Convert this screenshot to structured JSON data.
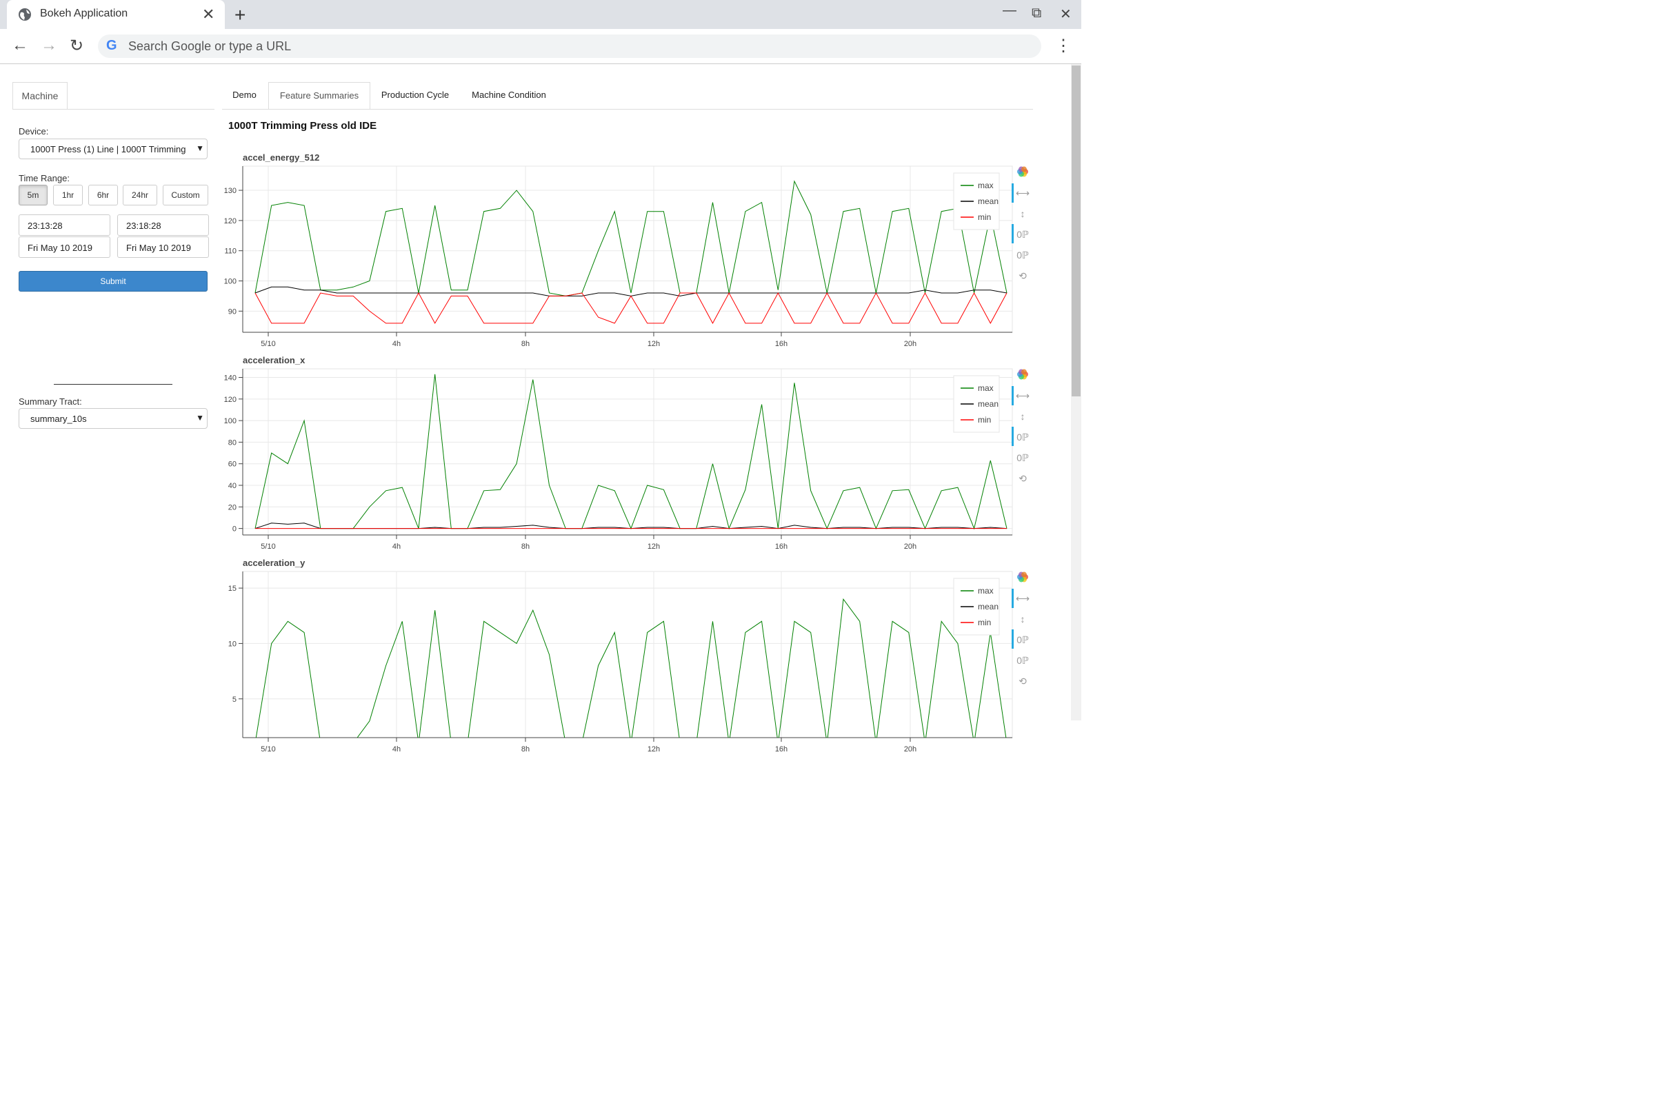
{
  "browser": {
    "tab_title": "Bokeh Application",
    "close_glyph": "✕",
    "new_tab_glyph": "+",
    "omnibox_placeholder": "Search Google or type a URL",
    "window_controls": [
      "minimize-icon",
      "restore-icon",
      "close-icon"
    ]
  },
  "left_panel": {
    "tab": "Machine",
    "device_label": "Device:",
    "device_value": "1000T Press (1) Line | 1000T Trimming",
    "time_range_label": "Time Range:",
    "time_buttons": [
      "5m",
      "1hr",
      "6hr",
      "24hr",
      "Custom"
    ],
    "active_time_button": "5m",
    "start_time": "23:13:28",
    "end_time": "23:18:28",
    "start_date": "Fri May 10 2019",
    "end_date": "Fri May 10 2019",
    "submit_label": "Submit",
    "summary_label": "Summary Tract:",
    "summary_value": "summary_10s"
  },
  "main_tabs": [
    "Demo",
    "Feature Summaries",
    "Production Cycle",
    "Machine Condition"
  ],
  "active_main_tab": "Feature Summaries",
  "page_title": "1000T Trimming Press old IDE",
  "legend": [
    "max",
    "mean",
    "min"
  ],
  "colors": {
    "max": "#008000",
    "mean": "#000000",
    "min": "#ff0000",
    "submit": "#3c87cc"
  },
  "x_ticks": [
    "5/10",
    "4h",
    "8h",
    "12h",
    "16h",
    "20h"
  ],
  "toolbar_icons": [
    "bokeh-logo-icon",
    "xpan-icon",
    "ypan-icon",
    "xwheel-zoom-icon",
    "ywheel-zoom-icon",
    "reset-icon"
  ],
  "chart_data": [
    {
      "type": "line",
      "title": "accel_energy_512",
      "x": [
        0,
        0.5,
        1,
        1.5,
        2,
        2.5,
        3,
        3.5,
        4,
        4.5,
        5,
        5.5,
        6,
        6.5,
        7,
        7.5,
        8,
        8.5,
        9,
        9.5,
        10,
        10.5,
        11,
        11.5,
        12,
        12.5,
        13,
        13.5,
        14,
        14.5,
        15,
        15.5,
        16,
        16.5,
        17,
        17.5,
        18,
        18.5,
        19,
        19.5,
        20,
        20.5,
        21,
        21.5,
        22,
        22.5,
        23
      ],
      "ylim": [
        83,
        138
      ],
      "yticks": [
        90,
        100,
        110,
        120,
        130
      ],
      "series": [
        {
          "name": "max",
          "values": [
            96,
            125,
            126,
            125,
            97,
            97,
            98,
            100,
            123,
            124,
            96,
            125,
            97,
            97,
            123,
            124,
            130,
            123,
            96,
            95,
            96,
            110,
            123,
            96,
            123,
            123,
            96,
            96,
            126,
            96,
            123,
            126,
            97,
            133,
            122,
            96,
            123,
            124,
            96,
            123,
            124,
            96,
            123,
            124,
            96,
            122,
            96
          ]
        },
        {
          "name": "mean",
          "values": [
            96,
            98,
            98,
            97,
            97,
            96,
            96,
            96,
            96,
            96,
            96,
            96,
            96,
            96,
            96,
            96,
            96,
            96,
            95,
            95,
            95,
            96,
            96,
            95,
            96,
            96,
            95,
            96,
            96,
            96,
            96,
            96,
            96,
            96,
            96,
            96,
            96,
            96,
            96,
            96,
            96,
            97,
            96,
            96,
            97,
            97,
            96
          ]
        },
        {
          "name": "min",
          "values": [
            96,
            86,
            86,
            86,
            96,
            95,
            95,
            90,
            86,
            86,
            96,
            86,
            95,
            95,
            86,
            86,
            86,
            86,
            95,
            95,
            96,
            88,
            86,
            95,
            86,
            86,
            96,
            96,
            86,
            96,
            86,
            86,
            96,
            86,
            86,
            96,
            86,
            86,
            96,
            86,
            86,
            96,
            86,
            86,
            96,
            86,
            96
          ]
        }
      ]
    },
    {
      "type": "line",
      "title": "acceleration_x",
      "x": [
        0,
        0.5,
        1,
        1.5,
        2,
        2.5,
        3,
        3.5,
        4,
        4.5,
        5,
        5.5,
        6,
        6.5,
        7,
        7.5,
        8,
        8.5,
        9,
        9.5,
        10,
        10.5,
        11,
        11.5,
        12,
        12.5,
        13,
        13.5,
        14,
        14.5,
        15,
        15.5,
        16,
        16.5,
        17,
        17.5,
        18,
        18.5,
        19,
        19.5,
        20,
        20.5,
        21,
        21.5,
        22,
        22.5,
        23
      ],
      "ylim": [
        -6,
        148
      ],
      "yticks": [
        0,
        20,
        40,
        60,
        80,
        100,
        120,
        140
      ],
      "series": [
        {
          "name": "max",
          "values": [
            0,
            70,
            60,
            100,
            0,
            0,
            0,
            20,
            35,
            38,
            0,
            143,
            0,
            0,
            35,
            36,
            60,
            138,
            40,
            0,
            0,
            40,
            35,
            0,
            40,
            36,
            0,
            0,
            60,
            0,
            36,
            115,
            0,
            135,
            35,
            0,
            35,
            38,
            0,
            35,
            36,
            0,
            35,
            38,
            0,
            63,
            0
          ]
        },
        {
          "name": "mean",
          "values": [
            0,
            5,
            4,
            5,
            0,
            0,
            0,
            0,
            0,
            0,
            0,
            1,
            0,
            0,
            1,
            1,
            2,
            3,
            1,
            0,
            0,
            1,
            1,
            0,
            1,
            1,
            0,
            0,
            2,
            0,
            1,
            2,
            0,
            3,
            1,
            0,
            1,
            1,
            0,
            1,
            1,
            0,
            1,
            1,
            0,
            1,
            0
          ]
        },
        {
          "name": "min",
          "values": [
            0,
            0,
            0,
            0,
            0,
            0,
            0,
            0,
            0,
            0,
            0,
            0,
            0,
            0,
            0,
            0,
            0,
            0,
            0,
            0,
            0,
            0,
            0,
            0,
            0,
            0,
            0,
            0,
            0,
            0,
            0,
            0,
            0,
            0,
            0,
            0,
            0,
            0,
            0,
            0,
            0,
            0,
            0,
            0,
            0,
            0,
            0
          ]
        }
      ]
    },
    {
      "type": "line",
      "title": "acceleration_y",
      "x": [
        0,
        0.5,
        1,
        1.5,
        2,
        2.5,
        3,
        3.5,
        4,
        4.5,
        5,
        5.5,
        6,
        6.5,
        7,
        7.5,
        8,
        8.5,
        9,
        9.5,
        10,
        10.5,
        11,
        11.5,
        12,
        12.5,
        13,
        13.5,
        14,
        14.5,
        15,
        15.5,
        16,
        16.5,
        17,
        17.5,
        18,
        18.5,
        19,
        19.5,
        20,
        20.5,
        21,
        21.5,
        22,
        22.5,
        23
      ],
      "ylim": [
        1.5,
        16.5
      ],
      "yticks": [
        5,
        10,
        15
      ],
      "series": [
        {
          "name": "max",
          "values": [
            1,
            10,
            12,
            11,
            1,
            1,
            1,
            3,
            8,
            12,
            1,
            13,
            1,
            1,
            12,
            11,
            10,
            13,
            9,
            1,
            1,
            8,
            11,
            1,
            11,
            12,
            1,
            1,
            12,
            1,
            11,
            12,
            1,
            12,
            11,
            1,
            14,
            12,
            1,
            12,
            11,
            1,
            12,
            10,
            1,
            11,
            1
          ]
        }
      ]
    }
  ]
}
